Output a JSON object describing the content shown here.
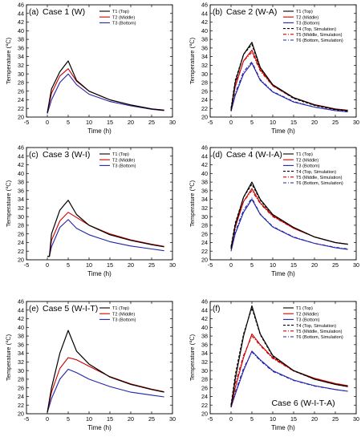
{
  "figure": {
    "background": "#ffffff"
  },
  "legend_styles": {
    "T1": {
      "color": "#000000",
      "dash": ""
    },
    "T2": {
      "color": "#cc0000",
      "dash": ""
    },
    "T3": {
      "color": "#2222aa",
      "dash": ""
    },
    "T4": {
      "color": "#000000",
      "dash": "3,2"
    },
    "T5": {
      "color": "#cc0000",
      "dash": "4,2,1,2"
    },
    "T6": {
      "color": "#2222aa",
      "dash": "4,2,1,2"
    }
  },
  "chart_data": [
    {
      "panel": "(a)",
      "case_label": "Case 1 (W)",
      "label_pos": "top-left",
      "type": "line",
      "xlabel": "Time (h)",
      "ylabel": "Temperature (℃)",
      "xlim": [
        -5,
        30
      ],
      "ylim": [
        20,
        46
      ],
      "xticks": [
        -5,
        0,
        5,
        10,
        15,
        20,
        25,
        30
      ],
      "yticks": [
        20,
        22,
        24,
        26,
        28,
        30,
        32,
        34,
        36,
        38,
        40,
        42,
        44,
        46
      ],
      "legend_position": "top-right",
      "series": [
        {
          "key": "T1",
          "name": "T1 (Top)",
          "x": [
            0,
            1,
            3,
            5,
            7,
            10,
            15,
            20,
            25,
            28
          ],
          "y": [
            21,
            26.5,
            30.5,
            33,
            28.5,
            26,
            24,
            22.8,
            21.9,
            21.6
          ]
        },
        {
          "key": "T2",
          "name": "T2 (Middle)",
          "x": [
            0,
            1,
            3,
            5,
            7,
            10,
            15,
            20,
            25,
            28
          ],
          "y": [
            21,
            25.5,
            29.5,
            31.2,
            28.3,
            26,
            24,
            22.8,
            21.9,
            21.6
          ]
        },
        {
          "key": "T3",
          "name": "T3 (Bottom)",
          "x": [
            0,
            1,
            3,
            5,
            7,
            10,
            15,
            20,
            25,
            28
          ],
          "y": [
            20.8,
            24,
            28,
            30,
            27.5,
            25.3,
            23.6,
            22.6,
            21.8,
            21.5
          ]
        }
      ]
    },
    {
      "panel": "(b)",
      "case_label": "Case 2 (W-A)",
      "label_pos": "top-left",
      "type": "line",
      "xlabel": "Time (h)",
      "ylabel": "Temperature (℃)",
      "xlim": [
        -5,
        30
      ],
      "ylim": [
        20,
        46
      ],
      "xticks": [
        -5,
        0,
        5,
        10,
        15,
        20,
        25,
        30
      ],
      "yticks": [
        20,
        22,
        24,
        26,
        28,
        30,
        32,
        34,
        36,
        38,
        40,
        42,
        44,
        46
      ],
      "legend_position": "top-right",
      "series": [
        {
          "key": "T1",
          "name": "T1 (Top)",
          "x": [
            0,
            1,
            3,
            5,
            7,
            10,
            15,
            20,
            25,
            28
          ],
          "y": [
            21.5,
            28,
            34.5,
            37.3,
            31.5,
            27.5,
            24.5,
            22.8,
            21.8,
            21.5
          ]
        },
        {
          "key": "T2",
          "name": "T2 (Middle)",
          "x": [
            0,
            1,
            3,
            5,
            7,
            10,
            15,
            20,
            25,
            28
          ],
          "y": [
            21.5,
            27,
            33,
            35.5,
            31,
            27.3,
            24.5,
            22.9,
            21.9,
            21.6
          ]
        },
        {
          "key": "T3",
          "name": "T3 (Bottom)",
          "x": [
            0,
            1,
            3,
            5,
            7,
            10,
            15,
            20,
            25,
            28
          ],
          "y": [
            21.3,
            25,
            30,
            32.5,
            28.5,
            25.8,
            23.5,
            22.3,
            21.5,
            21.2
          ]
        },
        {
          "key": "T4",
          "name": "T4 (Top, Simulation)",
          "x": [
            0,
            1,
            3,
            5,
            7,
            10,
            15,
            20,
            25,
            28
          ],
          "y": [
            22,
            28.5,
            34.5,
            36.8,
            31.2,
            27.3,
            24.3,
            22.7,
            21.7,
            21.4
          ]
        },
        {
          "key": "T5",
          "name": "T5 (Middle, Simulation)",
          "x": [
            0,
            1,
            3,
            5,
            7,
            10,
            15,
            20,
            25,
            28
          ],
          "y": [
            22,
            27.5,
            33,
            35,
            30.7,
            27.2,
            24.4,
            22.8,
            21.8,
            21.5
          ]
        },
        {
          "key": "T6",
          "name": "T6 (Bottom, Simulation)",
          "x": [
            0,
            1,
            3,
            5,
            7,
            10,
            15,
            20,
            25,
            28
          ],
          "y": [
            21.5,
            25.5,
            30.5,
            32.8,
            28.7,
            25.9,
            23.6,
            22.3,
            21.5,
            21.2
          ]
        }
      ]
    },
    {
      "panel": "(c)",
      "case_label": "Case 3 (W-I)",
      "label_pos": "top-left",
      "type": "line",
      "xlabel": "Time (h)",
      "ylabel": "Temperature (℃)",
      "xlim": [
        -5,
        30
      ],
      "ylim": [
        20,
        46
      ],
      "xticks": [
        -5,
        0,
        5,
        10,
        15,
        20,
        25,
        30
      ],
      "yticks": [
        20,
        22,
        24,
        26,
        28,
        30,
        32,
        34,
        36,
        38,
        40,
        42,
        44,
        46
      ],
      "legend_position": "top-right",
      "series": [
        {
          "key": "T1",
          "name": "T1 (Top)",
          "x": [
            0,
            0.5,
            1,
            3,
            5,
            7,
            10,
            15,
            20,
            25,
            28
          ],
          "y": [
            20.8,
            20.8,
            26,
            31.5,
            33.8,
            30.5,
            28,
            25.8,
            24.5,
            23.5,
            23
          ]
        },
        {
          "key": "T2",
          "name": "T2 (Middle)",
          "x": [
            0,
            0.5,
            1,
            3,
            5,
            7,
            10,
            15,
            20,
            25,
            28
          ],
          "y": [
            20.8,
            20.8,
            24.5,
            29,
            31,
            29.8,
            28,
            26,
            24.6,
            23.6,
            23.1
          ]
        },
        {
          "key": "T3",
          "name": "T3 (Bottom)",
          "x": [
            0,
            0.5,
            1,
            3,
            5,
            7,
            10,
            15,
            20,
            25,
            28
          ],
          "y": [
            20.8,
            20.8,
            23,
            27.5,
            29.3,
            27.3,
            25.8,
            24.2,
            23.2,
            22.5,
            22.1
          ]
        }
      ]
    },
    {
      "panel": "(d)",
      "case_label": "Case 4 (W-I-A)",
      "label_pos": "top-left",
      "type": "line",
      "xlabel": "Time (h)",
      "ylabel": "Temperature (℃)",
      "xlim": [
        -5,
        30
      ],
      "ylim": [
        20,
        46
      ],
      "xticks": [
        -5,
        0,
        5,
        10,
        15,
        20,
        25,
        30
      ],
      "yticks": [
        20,
        22,
        24,
        26,
        28,
        30,
        32,
        34,
        36,
        38,
        40,
        42,
        44,
        46
      ],
      "legend_position": "top-right",
      "series": [
        {
          "key": "T1",
          "name": "T1 (Top)",
          "x": [
            0,
            1,
            3,
            5,
            7,
            10,
            15,
            20,
            25,
            28
          ],
          "y": [
            22.5,
            28,
            34.5,
            38,
            34,
            30.5,
            27.5,
            25.3,
            24,
            23.6
          ]
        },
        {
          "key": "T2",
          "name": "T2 (Middle)",
          "x": [
            0,
            1,
            3,
            5,
            7,
            10,
            15,
            20,
            25,
            28
          ],
          "y": [
            22.5,
            27.5,
            33.5,
            36.5,
            33.2,
            30.2,
            27.3,
            25.3,
            24,
            23.6
          ]
        },
        {
          "key": "T3",
          "name": "T3 (Bottom)",
          "x": [
            0,
            1,
            3,
            5,
            7,
            10,
            15,
            20,
            25,
            28
          ],
          "y": [
            22,
            26,
            31,
            34,
            30.5,
            27.6,
            25.2,
            23.8,
            22.8,
            22.4
          ]
        },
        {
          "key": "T4",
          "name": "T4 (Top, Simulation)",
          "x": [
            0,
            1,
            3,
            5,
            7,
            10,
            15,
            20,
            25,
            28
          ],
          "y": [
            23,
            28.5,
            34.5,
            37.5,
            33.8,
            30.3,
            27.4,
            25.3,
            24,
            23.6
          ]
        },
        {
          "key": "T5",
          "name": "T5 (Middle, Simulation)",
          "x": [
            0,
            1,
            3,
            5,
            7,
            10,
            15,
            20,
            25,
            28
          ],
          "y": [
            23,
            28,
            33.5,
            36,
            33,
            30,
            27.3,
            25.3,
            24,
            23.6
          ]
        },
        {
          "key": "T6",
          "name": "T6 (Bottom, Simulation)",
          "x": [
            0,
            1,
            3,
            5,
            7,
            10,
            15,
            20,
            25,
            28
          ],
          "y": [
            22.5,
            26.5,
            31.5,
            34.3,
            30.6,
            27.7,
            25.3,
            23.8,
            22.9,
            22.5
          ]
        }
      ]
    },
    {
      "panel": "(e)",
      "case_label": "Case 5 (W-I-T)",
      "label_pos": "top-left",
      "type": "line",
      "xlabel": "Time (h)",
      "ylabel": "Temperature (℃)",
      "xlim": [
        -5,
        30
      ],
      "ylim": [
        20,
        46
      ],
      "xticks": [
        -5,
        0,
        5,
        10,
        15,
        20,
        25,
        30
      ],
      "yticks": [
        20,
        22,
        24,
        26,
        28,
        30,
        32,
        34,
        36,
        38,
        40,
        42,
        44,
        46
      ],
      "legend_position": "top-right",
      "series": [
        {
          "key": "T1",
          "name": "T1 (Top)",
          "x": [
            0,
            1,
            3,
            5,
            7,
            10,
            15,
            20,
            25,
            28
          ],
          "y": [
            20.3,
            26,
            34,
            39.3,
            34.5,
            31.5,
            28.5,
            26.8,
            25.6,
            25
          ]
        },
        {
          "key": "T2",
          "name": "T2 (Middle)",
          "x": [
            0,
            1,
            3,
            5,
            7,
            10,
            15,
            20,
            25,
            28
          ],
          "y": [
            20.3,
            25,
            30.5,
            33,
            32.5,
            31,
            28.6,
            26.9,
            25.7,
            25.1
          ]
        },
        {
          "key": "T3",
          "name": "T3 (Bottom)",
          "x": [
            0,
            1,
            3,
            5,
            7,
            10,
            15,
            20,
            25,
            28
          ],
          "y": [
            20.3,
            23.5,
            28,
            30.3,
            29.5,
            28,
            26.3,
            25,
            24.3,
            23.9
          ]
        }
      ]
    },
    {
      "panel": "(f)",
      "case_label": "Case 6 (W-I-T-A)",
      "label_pos": "bottom-center",
      "type": "line",
      "xlabel": "Time (h)",
      "ylabel": "Temperature (℃)",
      "xlim": [
        -5,
        30
      ],
      "ylim": [
        20,
        46
      ],
      "xticks": [
        -5,
        0,
        5,
        10,
        15,
        20,
        25,
        30
      ],
      "yticks": [
        20,
        22,
        24,
        26,
        28,
        30,
        32,
        34,
        36,
        38,
        40,
        42,
        44,
        46
      ],
      "legend_position": "top-right",
      "series": [
        {
          "key": "T1",
          "name": "T1 (Top)",
          "x": [
            0,
            1,
            3,
            5,
            7,
            10,
            15,
            20,
            25,
            28
          ],
          "y": [
            21.5,
            28,
            38,
            45,
            38.5,
            33.5,
            30,
            28,
            26.8,
            26.3
          ]
        },
        {
          "key": "T2",
          "name": "T2 (Middle)",
          "x": [
            0,
            1,
            3,
            5,
            7,
            10,
            15,
            20,
            25,
            28
          ],
          "y": [
            21.5,
            26,
            33,
            38.5,
            36,
            33,
            30,
            28.2,
            27,
            26.5
          ]
        },
        {
          "key": "T3",
          "name": "T3 (Bottom)",
          "x": [
            0,
            1,
            3,
            5,
            7,
            10,
            15,
            20,
            25,
            28
          ],
          "y": [
            21.5,
            24.5,
            30,
            34.5,
            32.5,
            30,
            27.8,
            26.5,
            25.6,
            25.2
          ]
        },
        {
          "key": "T4",
          "name": "T4 (Top, Simulation)",
          "x": [
            0,
            1,
            3,
            5,
            7,
            10,
            15,
            20,
            25,
            28
          ],
          "y": [
            22,
            29,
            38.5,
            44.5,
            38.3,
            33.3,
            29.9,
            28,
            26.8,
            26.3
          ]
        },
        {
          "key": "T5",
          "name": "T5 (Middle, Simulation)",
          "x": [
            0,
            1,
            3,
            5,
            7,
            10,
            15,
            20,
            25,
            28
          ],
          "y": [
            22,
            27,
            33.5,
            38,
            35.8,
            32.8,
            29.9,
            28.2,
            27,
            26.5
          ]
        },
        {
          "key": "T6",
          "name": "T6 (Bottom, Simulation)",
          "x": [
            0,
            1,
            3,
            5,
            7,
            10,
            15,
            20,
            25,
            28
          ],
          "y": [
            21.8,
            25,
            30.5,
            34.3,
            32.3,
            29.8,
            27.7,
            26.4,
            25.6,
            25.2
          ]
        }
      ]
    }
  ]
}
